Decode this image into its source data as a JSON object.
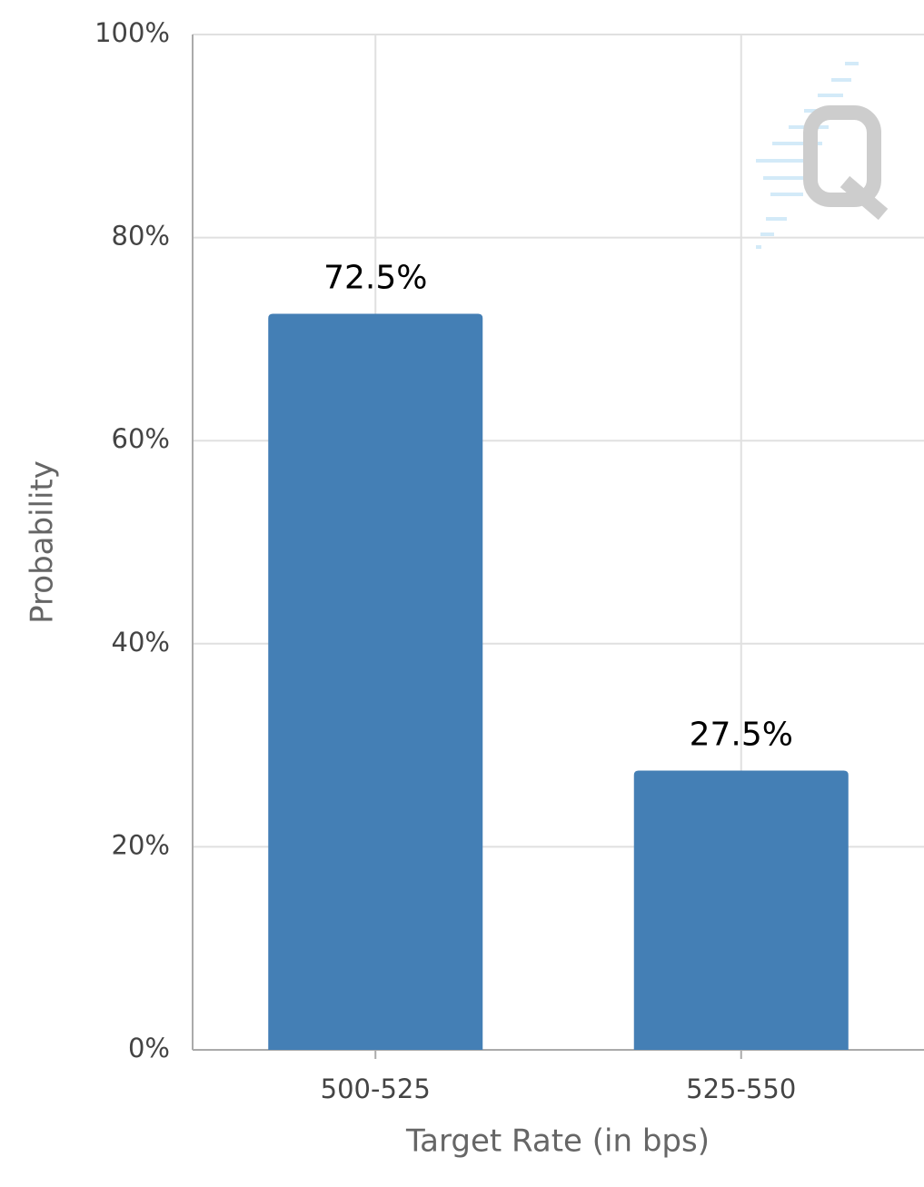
{
  "chart_data": {
    "type": "bar",
    "x_label": "Target Rate (in bps)",
    "y_label": "Probability",
    "categories": [
      "500-525",
      "525-550"
    ],
    "values": [
      72.5,
      27.5
    ],
    "value_labels": [
      "72.5%",
      "27.5%"
    ],
    "color": "#447fb5",
    "ylim": [
      0,
      100
    ],
    "yticks": [
      {
        "value": 0,
        "label": "0%"
      },
      {
        "value": 20,
        "label": "20%"
      },
      {
        "value": 40,
        "label": "40%"
      },
      {
        "value": 60,
        "label": "60%"
      },
      {
        "value": 80,
        "label": "80%"
      },
      {
        "value": 100,
        "label": "100%"
      }
    ],
    "grid": true
  }
}
